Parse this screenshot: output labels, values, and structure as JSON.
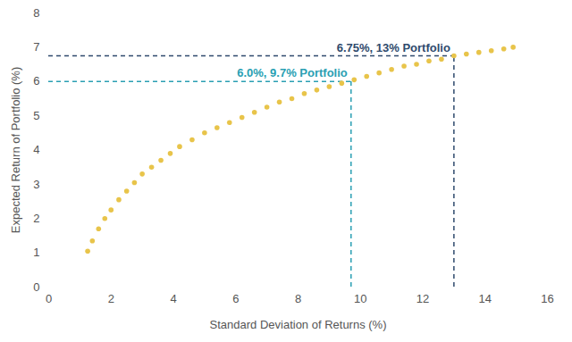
{
  "chart_data": {
    "type": "scatter",
    "x_label": "Standard Deviation of Returns (%)",
    "y_label": "Expected Return of Portfolio (%)",
    "x": [
      1.25,
      1.4,
      1.6,
      1.8,
      2.0,
      2.25,
      2.5,
      2.75,
      3.0,
      3.3,
      3.6,
      3.9,
      4.2,
      4.6,
      5.0,
      5.4,
      5.8,
      6.2,
      6.6,
      7.0,
      7.4,
      7.8,
      8.2,
      8.6,
      9.0,
      9.4,
      9.8,
      10.2,
      10.6,
      11.0,
      11.4,
      11.8,
      12.2,
      12.6,
      13.0,
      13.4,
      13.8,
      14.2,
      14.6,
      14.9
    ],
    "values": [
      1.05,
      1.35,
      1.7,
      2.0,
      2.25,
      2.55,
      2.8,
      3.05,
      3.3,
      3.5,
      3.7,
      3.9,
      4.1,
      4.3,
      4.5,
      4.65,
      4.8,
      4.95,
      5.1,
      5.25,
      5.4,
      5.5,
      5.65,
      5.75,
      5.85,
      5.95,
      6.05,
      6.15,
      6.25,
      6.35,
      6.45,
      6.5,
      6.6,
      6.65,
      6.75,
      6.8,
      6.85,
      6.9,
      6.95,
      7.0
    ],
    "color": "#e8c44a",
    "marker": "circle",
    "xlim": [
      0,
      16
    ],
    "xticks": [
      0,
      2,
      4,
      6,
      8,
      10,
      12,
      14,
      16
    ],
    "ylim": [
      0,
      8
    ],
    "yticks": [
      0,
      1,
      2,
      3,
      4,
      5,
      6,
      7,
      8
    ],
    "grid": false,
    "annotations": [
      {
        "text": "6.75%, 13% Portfolio",
        "x": 13,
        "y": 6.75,
        "color": "#2f4a6d",
        "line_style": "dashed"
      },
      {
        "text": "6.0%, 9.7% Portfolio",
        "x": 9.7,
        "y": 6.0,
        "color": "#2a9fb3",
        "line_style": "dashed"
      }
    ]
  }
}
